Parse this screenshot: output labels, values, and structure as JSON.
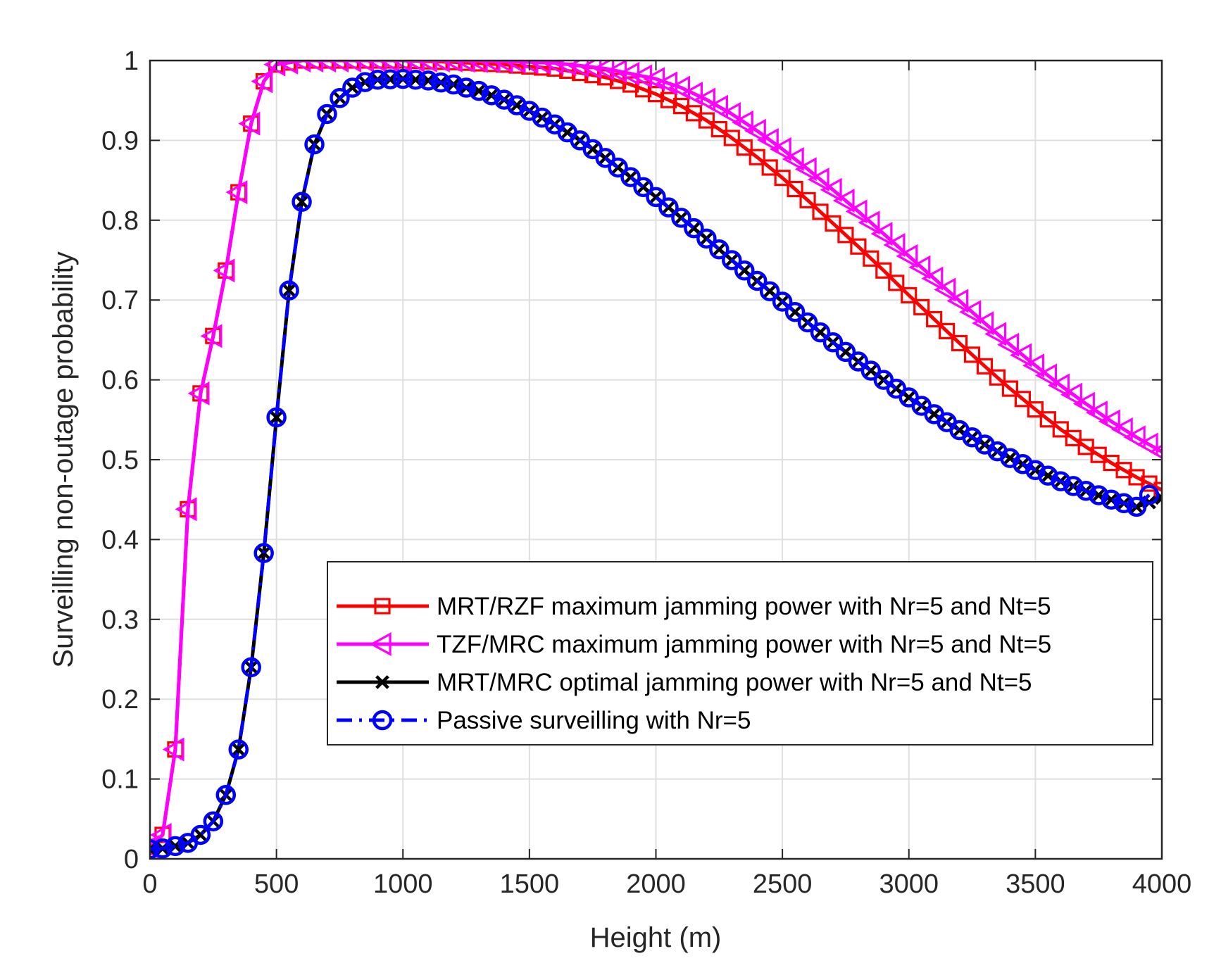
{
  "chart_data": {
    "type": "line",
    "title": "",
    "xlabel": "Height (m)",
    "ylabel": "Surveilling non-outage probability",
    "xlim": [
      0,
      4000
    ],
    "ylim": [
      0,
      1
    ],
    "xticks": [
      0,
      500,
      1000,
      1500,
      2000,
      2500,
      3000,
      3500,
      4000
    ],
    "yticks": [
      0,
      0.1,
      0.2,
      0.3,
      0.4,
      0.5,
      0.6,
      0.7,
      0.8,
      0.9,
      1
    ],
    "xtick_labels": [
      "0",
      "500",
      "1000",
      "1500",
      "2000",
      "2500",
      "3000",
      "3500",
      "4000"
    ],
    "ytick_labels": [
      "0",
      "0.1",
      "0.2",
      "0.3",
      "0.4",
      "0.5",
      "0.6",
      "0.7",
      "0.8",
      "0.9",
      "1"
    ],
    "grid": true,
    "legend_position": "lower-right",
    "series": [
      {
        "name": "MRT/RZF maximum  jamming power with Nr=5 and Nt=5",
        "color": "#ff0000",
        "marker": "square",
        "line_style": "solid",
        "x": [
          0,
          50,
          100,
          150,
          200,
          250,
          300,
          350,
          400,
          450,
          500,
          600,
          700,
          800,
          1000,
          1200,
          1400,
          1600,
          1800,
          1900,
          2000,
          2100,
          2200,
          2300,
          2400,
          2500,
          2600,
          2700,
          2800,
          2900,
          3000,
          3100,
          3200,
          3300,
          3400,
          3500,
          3600,
          3700,
          3800,
          3900,
          4000
        ],
        "y": [
          0.015,
          0.03,
          0.137,
          0.438,
          0.583,
          0.655,
          0.737,
          0.835,
          0.921,
          0.974,
          0.995,
          1.0,
          1.0,
          1.0,
          1.0,
          0.998,
          0.995,
          0.99,
          0.979,
          0.97,
          0.958,
          0.943,
          0.925,
          0.903,
          0.879,
          0.853,
          0.825,
          0.796,
          0.767,
          0.737,
          0.706,
          0.676,
          0.646,
          0.617,
          0.589,
          0.563,
          0.538,
          0.516,
          0.496,
          0.478,
          0.462
        ]
      },
      {
        "name": "TZF/MRC maximum  jamming power with Nr=5 and Nt=5",
        "color": "#ff00ff",
        "marker": "triangle-left",
        "line_style": "solid",
        "x": [
          0,
          50,
          100,
          150,
          200,
          250,
          300,
          350,
          400,
          450,
          500,
          600,
          700,
          800,
          1000,
          1200,
          1400,
          1600,
          1800,
          2000,
          2100,
          2200,
          2300,
          2400,
          2500,
          2600,
          2700,
          2800,
          2900,
          3000,
          3100,
          3200,
          3300,
          3400,
          3500,
          3600,
          3700,
          3800,
          3900,
          4000
        ],
        "y": [
          0.015,
          0.03,
          0.137,
          0.438,
          0.583,
          0.655,
          0.737,
          0.835,
          0.921,
          0.974,
          0.995,
          1.0,
          1.0,
          1.0,
          1.0,
          1.0,
          0.999,
          0.997,
          0.99,
          0.977,
          0.966,
          0.951,
          0.933,
          0.912,
          0.889,
          0.864,
          0.838,
          0.811,
          0.783,
          0.755,
          0.727,
          0.699,
          0.671,
          0.644,
          0.618,
          0.593,
          0.57,
          0.548,
          0.528,
          0.51
        ]
      },
      {
        "name": "MRT/MRC optimal jamming power with Nr=5 and Nt=5",
        "color": "#000000",
        "marker": "x",
        "line_style": "solid",
        "x": [
          0,
          50,
          100,
          150,
          200,
          250,
          300,
          350,
          400,
          450,
          500,
          550,
          600,
          650,
          700,
          750,
          800,
          850,
          900,
          1000,
          1100,
          1200,
          1300,
          1400,
          1500,
          1600,
          1700,
          1800,
          1900,
          2000,
          2100,
          2200,
          2300,
          2400,
          2500,
          2600,
          2700,
          2800,
          2900,
          3000,
          3100,
          3200,
          3300,
          3400,
          3500,
          3600,
          3700,
          3800,
          3900,
          4000
        ],
        "y": [
          0.012,
          0.013,
          0.016,
          0.02,
          0.03,
          0.047,
          0.08,
          0.137,
          0.24,
          0.383,
          0.553,
          0.712,
          0.823,
          0.895,
          0.933,
          0.953,
          0.966,
          0.973,
          0.976,
          0.977,
          0.975,
          0.97,
          0.962,
          0.951,
          0.937,
          0.92,
          0.9,
          0.878,
          0.854,
          0.829,
          0.803,
          0.777,
          0.75,
          0.724,
          0.698,
          0.672,
          0.647,
          0.623,
          0.6,
          0.578,
          0.557,
          0.537,
          0.519,
          0.502,
          0.487,
          0.473,
          0.461,
          0.45,
          0.441,
          0.452
        ]
      },
      {
        "name": "Passive surveilling with Nr=5",
        "color": "#0000ff",
        "marker": "circle",
        "line_style": "dash-dot",
        "x": [
          0,
          50,
          100,
          150,
          200,
          250,
          300,
          350,
          400,
          450,
          500,
          550,
          600,
          650,
          700,
          750,
          800,
          850,
          900,
          1000,
          1100,
          1200,
          1300,
          1400,
          1500,
          1600,
          1700,
          1800,
          1900,
          2000,
          2100,
          2200,
          2300,
          2400,
          2500,
          2600,
          2700,
          2800,
          2900,
          3000,
          3100,
          3200,
          3300,
          3400,
          3500,
          3600,
          3700,
          3800,
          3900,
          3950
        ],
        "y": [
          0.012,
          0.013,
          0.016,
          0.02,
          0.03,
          0.047,
          0.08,
          0.137,
          0.24,
          0.383,
          0.553,
          0.712,
          0.823,
          0.895,
          0.933,
          0.953,
          0.966,
          0.973,
          0.976,
          0.977,
          0.975,
          0.97,
          0.962,
          0.951,
          0.937,
          0.92,
          0.9,
          0.878,
          0.854,
          0.829,
          0.803,
          0.777,
          0.75,
          0.724,
          0.698,
          0.672,
          0.647,
          0.623,
          0.6,
          0.578,
          0.557,
          0.537,
          0.519,
          0.502,
          0.487,
          0.473,
          0.461,
          0.45,
          0.441,
          0.456
        ]
      }
    ]
  }
}
